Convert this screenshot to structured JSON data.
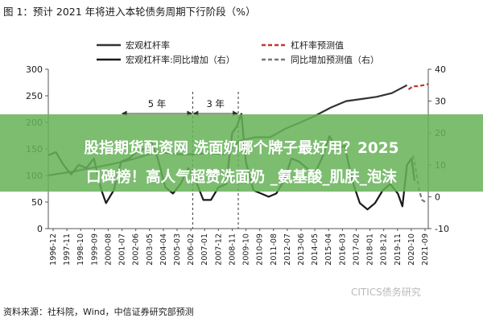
{
  "header": {
    "title": "图 1：预计 2021 年将进入本轮债务周期下行阶段（%）"
  },
  "footer": {
    "source": "资料来源：社科院，Wind，中信证券研究部预测"
  },
  "watermark": {
    "text": "CITICS债务研究"
  },
  "overlay": {
    "line1": "股指期货配资网 洗面奶哪个牌子最好用？2025",
    "line2": "口碑榜！高人气超赞洗面奶 _氨基酸_肌肤_泡沫"
  },
  "chart_data": {
    "type": "line",
    "title": "图 1：预计 2021 年将进入本轮债务周期下行阶段（%）",
    "legend_position": "top",
    "left_axis": {
      "ylim": [
        0,
        300
      ],
      "ticks": [
        0,
        50,
        100,
        150,
        200,
        250,
        300
      ]
    },
    "right_axis": {
      "ylim": [
        -10,
        40
      ],
      "ticks": [
        -10,
        0,
        10,
        20,
        30,
        40
      ]
    },
    "x_ticks": [
      "1996-12",
      "1997-11",
      "1998-10",
      "1999-09",
      "2000-08",
      "2001-07",
      "2002-06",
      "2003-05",
      "2004-04",
      "2005-03",
      "2006-02",
      "2007-01",
      "2007-12",
      "2008-11",
      "2009-10",
      "2010-09",
      "2011-08",
      "2012-07",
      "2013-06",
      "2014-05",
      "2015-04",
      "2016-03",
      "2017-02",
      "2018-01",
      "2018-12",
      "2019-11",
      "2020-10",
      "2021-09"
    ],
    "series": [
      {
        "name": "宏观杠杆率",
        "axis": "left",
        "color": "#333333",
        "style": "solid",
        "x": [
          1996.9,
          1997.5,
          1998.5,
          1999.5,
          2000.5,
          2001.5,
          2002.5,
          2003.5,
          2004.5,
          2005.5,
          2006.5,
          2007.5,
          2008.5,
          2009.5,
          2010.5,
          2011.5,
          2012.5,
          2013.5,
          2014.5,
          2015.5,
          2016.5,
          2017.5,
          2018.5,
          2019.5,
          2020.5
        ],
        "y": [
          100,
          103,
          107,
          113,
          118,
          124,
          131,
          140,
          143,
          140,
          140,
          142,
          140,
          165,
          172,
          172,
          188,
          200,
          213,
          228,
          240,
          244,
          248,
          255,
          270
        ]
      },
      {
        "name": "杠杆率预测值",
        "axis": "left",
        "color": "#c0392b",
        "style": "dashed",
        "x": [
          2020.6,
          2020.9,
          2021.2,
          2021.6,
          2021.9
        ],
        "y": [
          262,
          268,
          268,
          270,
          272
        ]
      },
      {
        "name": "宏观杠杆率:同比增加（右）",
        "axis": "right",
        "color": "#1a1a1a",
        "style": "solid",
        "x": [
          1996.9,
          1997.4,
          1997.9,
          1998.4,
          1998.9,
          1999.4,
          1999.9,
          2000.4,
          2000.7,
          2001.2,
          2001.7,
          2002.2,
          2002.7,
          2003.2,
          2003.7,
          2004.1,
          2004.6,
          2005.1,
          2005.6,
          2006.1,
          2006.6,
          2007.1,
          2007.6,
          2008.1,
          2008.6,
          2009.0,
          2009.3,
          2009.6,
          2009.9,
          2010.4,
          2010.9,
          2011.4,
          2011.9,
          2012.4,
          2012.9,
          2013.4,
          2013.9,
          2014.4,
          2014.9,
          2015.4,
          2015.9,
          2016.4,
          2016.9,
          2017.4,
          2017.9,
          2018.4,
          2018.9,
          2019.4,
          2019.9,
          2020.2,
          2020.5,
          2020.8,
          2021.0
        ],
        "y": [
          13,
          14,
          10,
          7,
          10,
          9,
          12,
          2,
          -2,
          2,
          11,
          12,
          14,
          15,
          17,
          12,
          3,
          1,
          4,
          9,
          5,
          -1,
          -1,
          3,
          4,
          20,
          22,
          26,
          11,
          2,
          1,
          0,
          1,
          5,
          12,
          11,
          9,
          7,
          12,
          19,
          15,
          16,
          5,
          -2,
          -4,
          -2,
          2,
          4,
          1,
          -3,
          10,
          12,
          5
        ]
      },
      {
        "name": "同比增加预测值（右）",
        "axis": "right",
        "color": "#777777",
        "style": "dashed",
        "x": [
          2020.9,
          2021.1,
          2021.3,
          2021.5,
          2021.8
        ],
        "y": [
          13,
          8,
          2,
          -1,
          -2
        ]
      }
    ],
    "annotations": [
      {
        "text": "5 年",
        "from": 2001.7,
        "to": 2006.4
      },
      {
        "text": "3 年",
        "from": 2006.4,
        "to": 2009.4
      }
    ],
    "vlines": [
      2006.4,
      2009.4
    ]
  }
}
